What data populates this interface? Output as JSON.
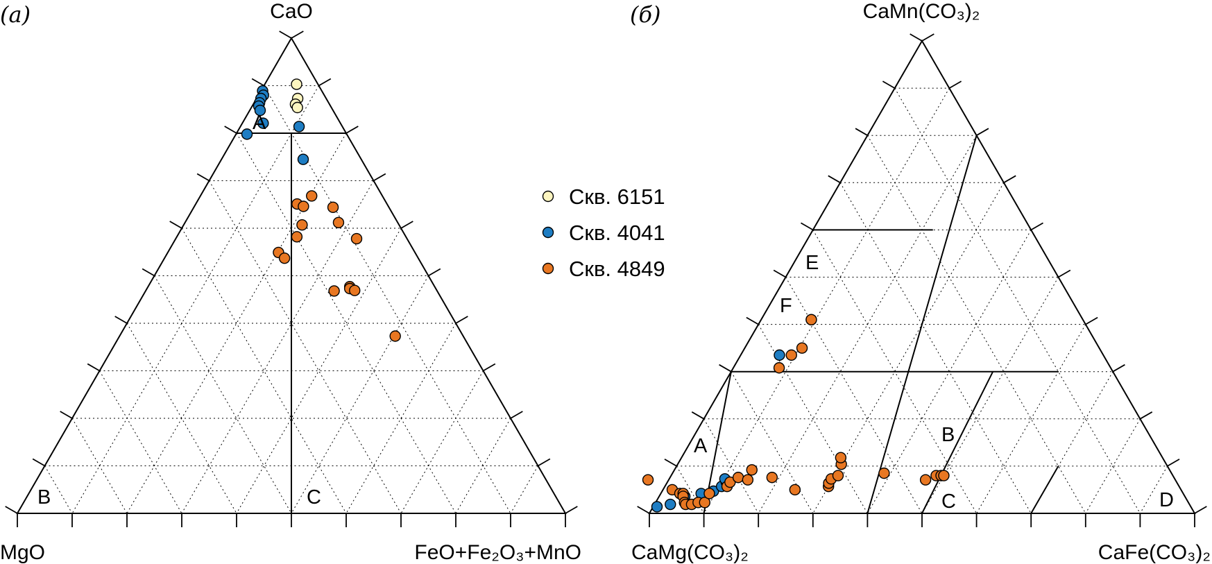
{
  "chart_data": [
    {
      "type": "scatter",
      "subtype": "ternary",
      "panel_label": "(а)",
      "vertices": {
        "top": "CaO",
        "left": "MgO",
        "right": "FeO+Fe₂O₃+MnO"
      },
      "grid": "dotted, 10% steps",
      "field_labels": [
        "A",
        "B",
        "C"
      ],
      "series": [
        {
          "name": "Скв. 6151",
          "color": "#FCF5C0",
          "points": [
            {
              "CaO": 90.3,
              "MgO": 3.9,
              "FeOt": 5.8
            },
            {
              "CaO": 87.3,
              "MgO": 5.2,
              "FeOt": 7.5
            },
            {
              "CaO": 86.1,
              "MgO": 6.2,
              "FeOt": 7.7
            },
            {
              "CaO": 85.4,
              "MgO": 6.2,
              "FeOt": 8.4
            }
          ]
        },
        {
          "name": "Скв. 4041",
          "color": "#1E7DC3",
          "points": [
            {
              "CaO": 88.9,
              "MgO": 10.8,
              "FeOt": 0.3
            },
            {
              "CaO": 88.0,
              "MgO": 11.1,
              "FeOt": 0.9
            },
            {
              "CaO": 87.3,
              "MgO": 11.9,
              "FeOt": 0.8
            },
            {
              "CaO": 86.4,
              "MgO": 12.6,
              "FeOt": 1.0
            },
            {
              "CaO": 85.7,
              "MgO": 13.1,
              "FeOt": 1.2
            },
            {
              "CaO": 84.8,
              "MgO": 13.3,
              "FeOt": 1.9
            },
            {
              "CaO": 82.1,
              "MgO": 14.1,
              "FeOt": 3.8
            },
            {
              "CaO": 81.4,
              "MgO": 7.9,
              "FeOt": 10.7
            },
            {
              "CaO": 79.8,
              "MgO": 18.2,
              "FeOt": 2.0
            },
            {
              "CaO": 74.5,
              "MgO": 10.6,
              "FeOt": 14.9
            }
          ]
        },
        {
          "name": "Скв. 4849",
          "color": "#E87722",
          "points": [
            {
              "CaO": 66.8,
              "MgO": 12.9,
              "FeOt": 20.3
            },
            {
              "CaO": 65.1,
              "MgO": 16.4,
              "FeOt": 18.5
            },
            {
              "CaO": 64.6,
              "MgO": 15.5,
              "FeOt": 19.9
            },
            {
              "CaO": 64.4,
              "MgO": 10.2,
              "FeOt": 25.4
            },
            {
              "CaO": 61.2,
              "MgO": 10.8,
              "FeOt": 28.0
            },
            {
              "CaO": 60.7,
              "MgO": 17.7,
              "FeOt": 21.6
            },
            {
              "CaO": 58.2,
              "MgO": 19.9,
              "FeOt": 21.9
            },
            {
              "CaO": 57.8,
              "MgO": 9.2,
              "FeOt": 33.0
            },
            {
              "CaO": 54.9,
              "MgO": 24.9,
              "FeOt": 20.2
            },
            {
              "CaO": 53.7,
              "MgO": 24.4,
              "FeOt": 21.9
            },
            {
              "CaO": 47.7,
              "MgO": 15.5,
              "FeOt": 36.8
            },
            {
              "CaO": 47.3,
              "MgO": 15.7,
              "FeOt": 37.0
            },
            {
              "CaO": 46.8,
              "MgO": 18.8,
              "FeOt": 34.4
            },
            {
              "CaO": 46.9,
              "MgO": 15.0,
              "FeOt": 38.1
            },
            {
              "CaO": 37.3,
              "MgO": 12.4,
              "FeOt": 50.3
            }
          ]
        }
      ]
    },
    {
      "type": "scatter",
      "subtype": "ternary",
      "panel_label": "(б)",
      "vertices": {
        "top": "CaMn(CO₃)₂",
        "left": "CaMg(CO₃)₂",
        "right": "CaFe(CO₃)₂"
      },
      "grid": "dotted, 10% steps",
      "field_labels": [
        "A",
        "B",
        "C",
        "D",
        "E",
        "F"
      ],
      "series": [
        {
          "name": "Скв. 4041",
          "color": "#1E7DC3",
          "points": [
            {
              "CaMn": 1.4,
              "CaMg": 97.9,
              "CaFe": 0.7
            },
            {
              "CaMn": 1.9,
              "CaMg": 95.2,
              "CaFe": 2.9
            },
            {
              "CaMn": 3.6,
              "CaMg": 91.7,
              "CaFe": 4.7
            },
            {
              "CaMn": 4.2,
              "CaMg": 88.4,
              "CaFe": 7.4
            },
            {
              "CaMn": 4.7,
              "CaMg": 85.9,
              "CaFe": 9.4
            },
            {
              "CaMn": 5.7,
              "CaMg": 83.9,
              "CaFe": 10.4
            },
            {
              "CaMn": 6.6,
              "CaMg": 82.6,
              "CaFe": 10.8
            },
            {
              "CaMn": 7.3,
              "CaMg": 82.5,
              "CaFe": 10.2
            },
            {
              "CaMn": 33.5,
              "CaMg": 59.4,
              "CaFe": 7.1
            }
          ]
        },
        {
          "name": "Скв. 4849",
          "color": "#E87722",
          "points": [
            {
              "CaMn": 7.1,
              "CaMg": 96.7,
              "CaFe": -3.8
            },
            {
              "CaMn": 5.0,
              "CaMg": 93.3,
              "CaFe": 1.7
            },
            {
              "CaMn": 4.2,
              "CaMg": 92.3,
              "CaFe": 3.5
            },
            {
              "CaMn": 4.2,
              "CaMg": 91.7,
              "CaFe": 4.1
            },
            {
              "CaMn": 3.6,
              "CaMg": 92.0,
              "CaFe": 4.4
            },
            {
              "CaMn": 2.3,
              "CaMg": 92.4,
              "CaFe": 5.3
            },
            {
              "CaMn": 1.9,
              "CaMg": 92.4,
              "CaFe": 5.7
            },
            {
              "CaMn": 1.9,
              "CaMg": 91.3,
              "CaFe": 6.8
            },
            {
              "CaMn": 2.3,
              "CaMg": 89.9,
              "CaFe": 7.8
            },
            {
              "CaMn": 2.3,
              "CaMg": 88.7,
              "CaFe": 9.0
            },
            {
              "CaMn": 4.2,
              "CaMg": 86.9,
              "CaFe": 8.9
            },
            {
              "CaMn": 5.7,
              "CaMg": 82.9,
              "CaFe": 11.4
            },
            {
              "CaMn": 6.6,
              "CaMg": 81.9,
              "CaFe": 11.5
            },
            {
              "CaMn": 7.6,
              "CaMg": 79.9,
              "CaFe": 12.5
            },
            {
              "CaMn": 7.1,
              "CaMg": 78.4,
              "CaFe": 14.5
            },
            {
              "CaMn": 9.2,
              "CaMg": 76.6,
              "CaFe": 14.2
            },
            {
              "CaMn": 7.6,
              "CaMg": 73.7,
              "CaFe": 18.7
            },
            {
              "CaMn": 5.0,
              "CaMg": 70.8,
              "CaFe": 24.2
            },
            {
              "CaMn": 5.7,
              "CaMg": 64.3,
              "CaFe": 30.0
            },
            {
              "CaMn": 6.4,
              "CaMg": 63.9,
              "CaFe": 29.7
            },
            {
              "CaMn": 7.3,
              "CaMg": 63.0,
              "CaFe": 29.7
            },
            {
              "CaMn": 8.0,
              "CaMg": 61.4,
              "CaFe": 30.6
            },
            {
              "CaMn": 10.4,
              "CaMg": 59.6,
              "CaFe": 30.0
            },
            {
              "CaMn": 11.8,
              "CaMg": 59.0,
              "CaFe": 29.2
            },
            {
              "CaMn": 8.5,
              "CaMg": 52.7,
              "CaFe": 38.8
            },
            {
              "CaMn": 7.1,
              "CaMg": 45.8,
              "CaFe": 47.1
            },
            {
              "CaMn": 8.0,
              "CaMg": 43.4,
              "CaFe": 48.6
            },
            {
              "CaMn": 8.0,
              "CaMg": 42.5,
              "CaFe": 49.5
            },
            {
              "CaMn": 8.0,
              "CaMg": 42.0,
              "CaFe": 50.0
            },
            {
              "CaMn": 33.5,
              "CaMg": 57.2,
              "CaFe": 9.3
            },
            {
              "CaMn": 30.8,
              "CaMg": 60.8,
              "CaFe": 8.4
            },
            {
              "CaMn": 35.0,
              "CaMg": 54.5,
              "CaFe": 10.5
            },
            {
              "CaMn": 41.0,
              "CaMg": 49.8,
              "CaFe": 9.2
            },
            {
              "CaMn": 41.0,
              "CaMg": 49.8,
              "CaFe": 9.2
            }
          ]
        }
      ]
    }
  ],
  "legend": {
    "position": "center",
    "items": [
      {
        "label": "Скв. 6151",
        "color": "#FCF5C0"
      },
      {
        "label": "Скв. 4041",
        "color": "#1E7DC3"
      },
      {
        "label": "Скв. 4849",
        "color": "#E87722"
      }
    ]
  }
}
